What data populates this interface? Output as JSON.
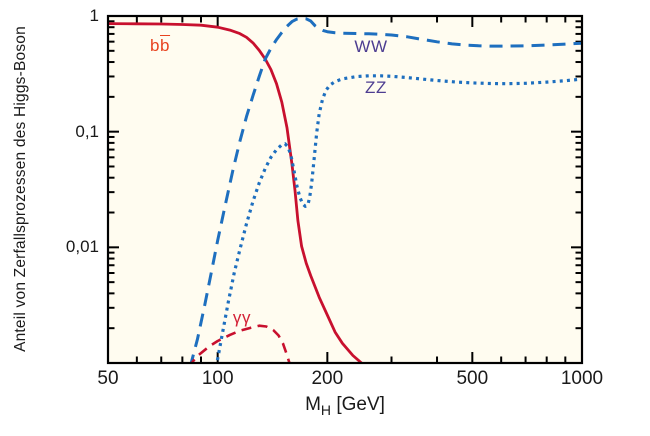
{
  "chart_data": {
    "type": "line",
    "title": "",
    "ylabel": "Anteil von Zerfallsprozessen des Higgs-Boson",
    "xlabel_parts": {
      "symbol": "M",
      "subscript": "H",
      "unit": " [GeV]"
    },
    "x_scale": "log",
    "y_scale": "log",
    "xlim": [
      50,
      1000
    ],
    "ylim": [
      0.001,
      1
    ],
    "grid": false,
    "x_major_ticks": [
      {
        "value": 50,
        "label": "50"
      },
      {
        "value": 100,
        "label": "100"
      },
      {
        "value": 200,
        "label": "200"
      },
      {
        "value": 500,
        "label": "500"
      },
      {
        "value": 1000,
        "label": "1000"
      }
    ],
    "x_minor_ticks": [
      60,
      70,
      80,
      90,
      300,
      400,
      600,
      700,
      800,
      900
    ],
    "y_major_ticks": [
      {
        "value": 1,
        "label": "1"
      },
      {
        "value": 0.1,
        "label": "0,1"
      },
      {
        "value": 0.01,
        "label": "0,01"
      }
    ],
    "y_minor_ticks": [
      0.9,
      0.8,
      0.7,
      0.6,
      0.5,
      0.4,
      0.3,
      0.2,
      0.09,
      0.08,
      0.07,
      0.06,
      0.05,
      0.04,
      0.03,
      0.02,
      0.009,
      0.008,
      0.007,
      0.006,
      0.005,
      0.004,
      0.003,
      0.002
    ],
    "colors": {
      "plot_background": "#fffcf0",
      "axis": "#000000",
      "curve_red": "#c8102e",
      "curve_blue": "#1e6fbf",
      "label_red_orange": "#e8431f",
      "label_purple": "#4d3d91",
      "label_red": "#d32035"
    },
    "series": [
      {
        "id": "bb",
        "name": "H -> b bbar",
        "label_parts": [
          {
            "text": "b"
          },
          {
            "text": "b",
            "overline": true
          }
        ],
        "label_color_key": "label_red_orange",
        "label_pos": {
          "x": 160,
          "y": 46
        },
        "color_key": "curve_red",
        "line_style": "solid",
        "width": 2.8,
        "points": [
          [
            50,
            0.86
          ],
          [
            60,
            0.857
          ],
          [
            70,
            0.852
          ],
          [
            80,
            0.845
          ],
          [
            90,
            0.832
          ],
          [
            100,
            0.8
          ],
          [
            108,
            0.755
          ],
          [
            115,
            0.705
          ],
          [
            120,
            0.655
          ],
          [
            125,
            0.585
          ],
          [
            130,
            0.505
          ],
          [
            135,
            0.425
          ],
          [
            140,
            0.345
          ],
          [
            145,
            0.26
          ],
          [
            150,
            0.18
          ],
          [
            155,
            0.108
          ],
          [
            160,
            0.052
          ],
          [
            163,
            0.031
          ],
          [
            166,
            0.017
          ],
          [
            170,
            0.0102
          ],
          [
            175,
            0.0073
          ],
          [
            180,
            0.0057
          ],
          [
            190,
            0.0037
          ],
          [
            200,
            0.0026
          ],
          [
            210,
            0.00185
          ],
          [
            220,
            0.00148
          ],
          [
            235,
            0.00116
          ],
          [
            250,
            0.00098
          ],
          [
            260,
            0.00091
          ]
        ]
      },
      {
        "id": "ww",
        "name": "H -> WW",
        "label_parts": [
          {
            "text": "WW"
          }
        ],
        "label_color_key": "label_purple",
        "label_pos": {
          "x": 371,
          "y": 47
        },
        "color_key": "curve_blue",
        "line_style": "dashed",
        "width": 3,
        "points": [
          [
            84,
            0.00092
          ],
          [
            88,
            0.0016
          ],
          [
            92,
            0.0031
          ],
          [
            96,
            0.006
          ],
          [
            100,
            0.0115
          ],
          [
            105,
            0.0235
          ],
          [
            110,
            0.046
          ],
          [
            115,
            0.082
          ],
          [
            120,
            0.135
          ],
          [
            125,
            0.205
          ],
          [
            130,
            0.3
          ],
          [
            135,
            0.425
          ],
          [
            140,
            0.525
          ],
          [
            145,
            0.625
          ],
          [
            150,
            0.72
          ],
          [
            155,
            0.815
          ],
          [
            160,
            0.895
          ],
          [
            165,
            0.94
          ],
          [
            170,
            0.955
          ],
          [
            175,
            0.945
          ],
          [
            180,
            0.905
          ],
          [
            185,
            0.825
          ],
          [
            190,
            0.775
          ],
          [
            195,
            0.748
          ],
          [
            200,
            0.732
          ],
          [
            210,
            0.717
          ],
          [
            220,
            0.71
          ],
          [
            240,
            0.706
          ],
          [
            260,
            0.701
          ],
          [
            280,
            0.695
          ],
          [
            300,
            0.685
          ],
          [
            330,
            0.662
          ],
          [
            360,
            0.632
          ],
          [
            400,
            0.598
          ],
          [
            440,
            0.574
          ],
          [
            480,
            0.56
          ],
          [
            520,
            0.552
          ],
          [
            560,
            0.549
          ],
          [
            600,
            0.549
          ],
          [
            700,
            0.553
          ],
          [
            800,
            0.561
          ],
          [
            900,
            0.571
          ],
          [
            1000,
            0.582
          ]
        ]
      },
      {
        "id": "zz",
        "name": "H -> ZZ",
        "label_parts": [
          {
            "text": "ZZ"
          }
        ],
        "label_color_key": "label_purple",
        "label_pos": {
          "x": 376,
          "y": 88
        },
        "color_key": "curve_blue",
        "line_style": "dotted",
        "width": 3.2,
        "points": [
          [
            99,
            0.00092
          ],
          [
            103,
            0.0018
          ],
          [
            107,
            0.0034
          ],
          [
            111,
            0.006
          ],
          [
            115,
            0.0095
          ],
          [
            120,
            0.016
          ],
          [
            125,
            0.025
          ],
          [
            130,
            0.036
          ],
          [
            135,
            0.048
          ],
          [
            140,
            0.06
          ],
          [
            145,
            0.07
          ],
          [
            150,
            0.077
          ],
          [
            153,
            0.0785
          ],
          [
            156,
            0.074
          ],
          [
            159,
            0.062
          ],
          [
            162,
            0.046
          ],
          [
            165,
            0.034
          ],
          [
            168,
            0.0272
          ],
          [
            171,
            0.0238
          ],
          [
            174,
            0.0226
          ],
          [
            177,
            0.0235
          ],
          [
            179,
            0.0275
          ],
          [
            181,
            0.0355
          ],
          [
            184,
            0.059
          ],
          [
            187,
            0.098
          ],
          [
            190,
            0.143
          ],
          [
            194,
            0.19
          ],
          [
            198,
            0.226
          ],
          [
            203,
            0.252
          ],
          [
            210,
            0.271
          ],
          [
            220,
            0.286
          ],
          [
            240,
            0.299
          ],
          [
            260,
            0.304
          ],
          [
            280,
            0.304
          ],
          [
            300,
            0.301
          ],
          [
            330,
            0.294
          ],
          [
            360,
            0.286
          ],
          [
            400,
            0.277
          ],
          [
            450,
            0.269
          ],
          [
            500,
            0.264
          ],
          [
            560,
            0.261
          ],
          [
            620,
            0.26
          ],
          [
            700,
            0.262
          ],
          [
            800,
            0.268
          ],
          [
            900,
            0.276
          ],
          [
            1000,
            0.285
          ]
        ]
      },
      {
        "id": "gg",
        "name": "H -> gamma gamma",
        "label_parts": [
          {
            "text": "γγ"
          }
        ],
        "label_color_key": "label_red",
        "label_pos": {
          "x": 242,
          "y": 318
        },
        "color_key": "curve_red",
        "line_style": "dashed_short",
        "width": 2.6,
        "points": [
          [
            83,
            0.00092
          ],
          [
            88,
            0.00115
          ],
          [
            95,
            0.0014
          ],
          [
            100,
            0.00155
          ],
          [
            108,
            0.00175
          ],
          [
            115,
            0.0019
          ],
          [
            122,
            0.002
          ],
          [
            130,
            0.0021
          ],
          [
            136,
            0.00207
          ],
          [
            142,
            0.00193
          ],
          [
            147,
            0.00173
          ],
          [
            151,
            0.00148
          ],
          [
            154,
            0.00124
          ],
          [
            157,
            0.00103
          ],
          [
            159,
            0.00088
          ]
        ]
      }
    ]
  }
}
